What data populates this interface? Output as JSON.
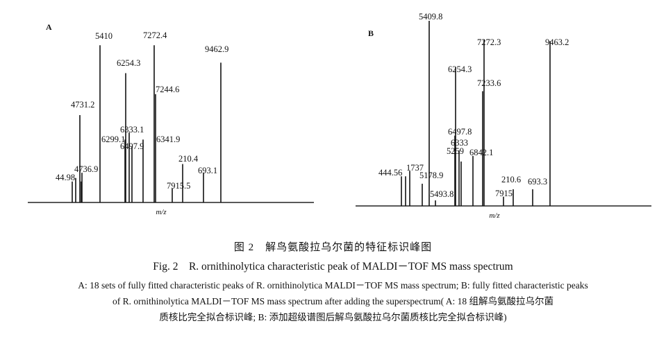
{
  "chart_data": [
    {
      "type": "bar",
      "panel_label": "A",
      "xlabel": "m/z",
      "peaks": [
        {
          "label": "44.98",
          "value": 12
        },
        {
          "label": "",
          "value": 14
        },
        {
          "label": "",
          "value": 12
        },
        {
          "label": "4736.9",
          "value": 17
        },
        {
          "label": "4731.2",
          "value": 50
        },
        {
          "label": "5410",
          "value": 90
        },
        {
          "label": "6299.1",
          "value": 36
        },
        {
          "label": "6254.3",
          "value": 74
        },
        {
          "label": "6333.1",
          "value": 40
        },
        {
          "label": "6497.9",
          "value": 32
        },
        {
          "label": "6341.9",
          "value": 36
        },
        {
          "label": "7272.4",
          "value": 90
        },
        {
          "label": "7244.6",
          "value": 62
        },
        {
          "label": "7915.5",
          "value": 8
        },
        {
          "label": "210.4",
          "value": 22
        },
        {
          "label": "693.1",
          "value": 17
        },
        {
          "label": "9462.9",
          "value": 80
        }
      ]
    },
    {
      "type": "bar",
      "panel_label": "B",
      "xlabel": "m/z",
      "peaks": [
        {
          "label": "444.56",
          "value": 16
        },
        {
          "label": "",
          "value": 16
        },
        {
          "label": "1737",
          "value": 19
        },
        {
          "label": "5178.9",
          "value": 12
        },
        {
          "label": "5409.8",
          "value": 100
        },
        {
          "label": "5493.8",
          "value": 3
        },
        {
          "label": "6497.8",
          "value": 38
        },
        {
          "label": "6254.3",
          "value": 75
        },
        {
          "label": "6333",
          "value": 30
        },
        {
          "label": "5259",
          "value": 24
        },
        {
          "label": "6842.1",
          "value": 27
        },
        {
          "label": "7233.6",
          "value": 62
        },
        {
          "label": "7272.3",
          "value": 90
        },
        {
          "label": "7915",
          "value": 5
        },
        {
          "label": "210.6",
          "value": 9
        },
        {
          "label": "693.3",
          "value": 9
        },
        {
          "label": "9463.2",
          "value": 89
        }
      ]
    }
  ],
  "caption": {
    "cn_title": "图 2　解鸟氨酸拉乌尔菌的特征标识峰图",
    "en_title": "Fig. 2　R. ornithinolytica characteristic peak of MALDI－TOF MS mass spectrum",
    "note_line1": "A:  18 sets of fully fitted characteristic peaks of R. ornithinolytica MALDI－TOF MS mass spectrum;  B:  fully fitted characteristic peaks",
    "note_line2": "of R. ornithinolytica MALDI－TOF MS mass spectrum after adding the superspectrum( A:  18 组解鸟氨酸拉乌尔菌",
    "note_line3": "质核比完全拟合标识峰;  B:  添加超级谱图后解鸟氨酸拉乌尔菌质核比完全拟合标识峰)"
  }
}
